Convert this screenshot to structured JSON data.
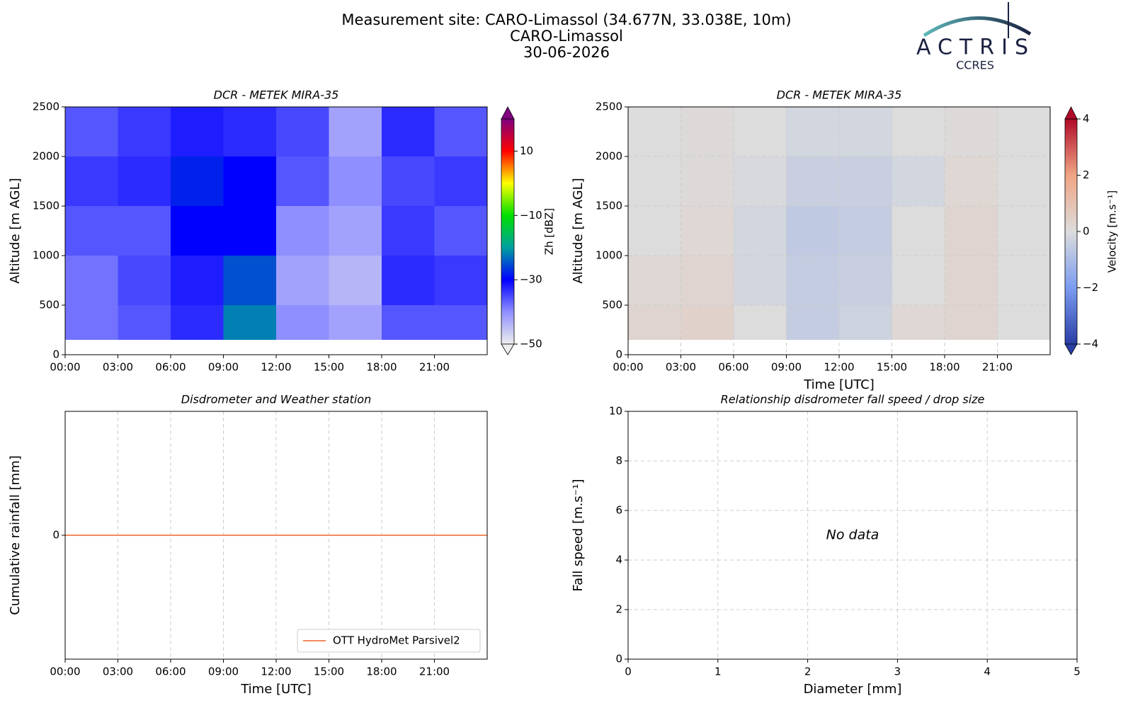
{
  "header": {
    "title_lines": [
      "Measurement site: CARO-Limassol (34.677N, 33.038E, 10m)",
      "CARO-Limassol",
      "30-06-2026"
    ]
  },
  "logo": {
    "name": "ACTRIS",
    "subtitle": "CCRES"
  },
  "chart_data": [
    {
      "type": "heatmap",
      "title": "DCR - METEK MIRA-35",
      "ylabel": "Altitude [m AGL]",
      "colorbar_label": "Zh [dBZ]",
      "xbins": [
        0,
        3,
        6,
        9,
        12,
        15,
        18,
        21,
        24
      ],
      "ybins": [
        150,
        500,
        1000,
        1500,
        2000,
        2500
      ],
      "z": [
        [
          -38,
          -36,
          -33,
          -22,
          -40,
          -42,
          -36,
          -36
        ],
        [
          -38,
          -35,
          -32,
          -25,
          -42,
          -44,
          -33,
          -34
        ],
        [
          -36,
          -36,
          -30,
          -30,
          -40,
          -42,
          -34,
          -36
        ],
        [
          -34,
          -33,
          -28,
          -30,
          -36,
          -40,
          -35,
          -34
        ],
        [
          -36,
          -34,
          -32,
          -33,
          -35,
          -42,
          -33,
          -36
        ]
      ],
      "clim": [
        -50,
        20
      ],
      "cticks": [
        {
          "value": -50,
          "label": "−50"
        },
        {
          "value": -30,
          "label": "−30"
        },
        {
          "value": -10,
          "label": "−10"
        },
        10
      ],
      "colormap": [
        "#eeeeee",
        "#8f8fff",
        "#0000ff",
        "#00a0a0",
        "#00e000",
        "#ffff00",
        "#ff0000",
        "#800080"
      ],
      "xlim": [
        0,
        24
      ],
      "xticks": [
        {
          "value": 0,
          "label": "00:00"
        },
        {
          "value": 3,
          "label": "03:00"
        },
        {
          "value": 6,
          "label": "06:00"
        },
        {
          "value": 9,
          "label": "09:00"
        },
        {
          "value": 12,
          "label": "12:00"
        },
        {
          "value": 15,
          "label": "15:00"
        },
        {
          "value": 18,
          "label": "18:00"
        },
        {
          "value": 21,
          "label": "21:00"
        }
      ],
      "ylim": [
        0,
        2500
      ],
      "yticks": [
        0,
        500,
        1000,
        1500,
        2000,
        2500
      ],
      "grid": false
    },
    {
      "type": "heatmap",
      "title": "DCR - METEK MIRA-35",
      "xlabel": "Time [UTC]",
      "ylabel": "Altitude [m AGL]",
      "colorbar_label": "Velocity [m.s⁻¹]",
      "xbins": [
        0,
        3,
        6,
        9,
        12,
        15,
        18,
        21,
        24
      ],
      "ybins": [
        150,
        500,
        1000,
        1500,
        2000,
        2500
      ],
      "z": [
        [
          0.3,
          0.4,
          0,
          -0.5,
          -0.3,
          0.2,
          0.3,
          0
        ],
        [
          0.2,
          0.3,
          -0.2,
          -0.5,
          -0.4,
          0,
          0.3,
          0
        ],
        [
          0,
          0.2,
          -0.2,
          -0.6,
          -0.5,
          0,
          0.3,
          0
        ],
        [
          0,
          0.1,
          -0.1,
          -0.4,
          -0.4,
          -0.2,
          0.2,
          0
        ],
        [
          0,
          0.1,
          0,
          -0.2,
          -0.2,
          0,
          0.1,
          0
        ]
      ],
      "clim": [
        -4,
        4
      ],
      "cticks": [
        {
          "value": -4,
          "label": "−4"
        },
        {
          "value": -2,
          "label": "−2"
        },
        0,
        2,
        4
      ],
      "colormap": [
        "#2a3ea6",
        "#7b9cf0",
        "#dcdcdc",
        "#f0a585",
        "#b00a28"
      ],
      "xlim": [
        0,
        24
      ],
      "xticks": [
        {
          "value": 0,
          "label": "00:00"
        },
        {
          "value": 3,
          "label": "03:00"
        },
        {
          "value": 6,
          "label": "06:00"
        },
        {
          "value": 9,
          "label": "09:00"
        },
        {
          "value": 12,
          "label": "12:00"
        },
        {
          "value": 15,
          "label": "15:00"
        },
        {
          "value": 18,
          "label": "18:00"
        },
        {
          "value": 21,
          "label": "21:00"
        }
      ],
      "ylim": [
        0,
        2500
      ],
      "yticks": [
        0,
        500,
        1000,
        1500,
        2000,
        2500
      ],
      "grid": true
    },
    {
      "type": "line",
      "title": "Disdrometer and Weather station",
      "xlabel": "Time [UTC]",
      "ylabel": "Cumulative rainfall [mm]",
      "x": [
        0,
        24
      ],
      "series": [
        {
          "name": "OTT HydroMet Parsivel2",
          "color": "#f28a5e",
          "values": [
            0,
            0
          ]
        }
      ],
      "xlim": [
        0,
        24
      ],
      "xticks": [
        {
          "value": 0,
          "label": "00:00"
        },
        {
          "value": 3,
          "label": "03:00"
        },
        {
          "value": 6,
          "label": "06:00"
        },
        {
          "value": 9,
          "label": "09:00"
        },
        {
          "value": 12,
          "label": "12:00"
        },
        {
          "value": 15,
          "label": "15:00"
        },
        {
          "value": 18,
          "label": "18:00"
        },
        {
          "value": 21,
          "label": "21:00"
        }
      ],
      "ylim": [
        -0.055,
        0.055
      ],
      "yticks": [
        0
      ],
      "grid": true,
      "legend": "lower right"
    },
    {
      "type": "scatter",
      "title": "Relationship disdrometer fall speed / drop size",
      "xlabel": "Diameter [mm]",
      "ylabel": "Fall speed [m.s⁻¹]",
      "annotation": "No data",
      "xlim": [
        0,
        5
      ],
      "xticks": [
        0,
        1,
        2,
        3,
        4,
        5
      ],
      "ylim": [
        0,
        10
      ],
      "yticks": [
        0,
        2,
        4,
        6,
        8,
        10
      ],
      "grid": true
    }
  ]
}
